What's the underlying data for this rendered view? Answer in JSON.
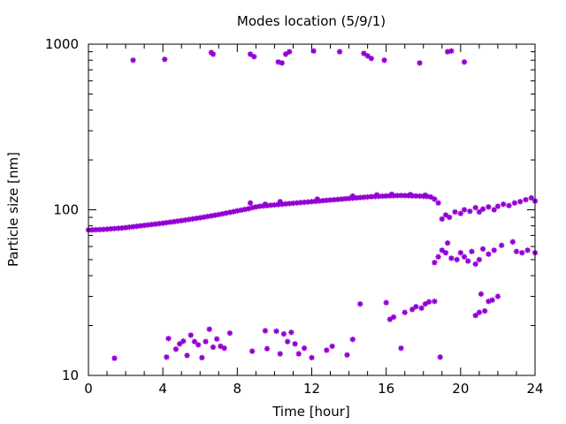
{
  "chart_data": {
    "type": "scatter",
    "title": "Modes location (5/9/1)",
    "xlabel": "Time [hour]",
    "ylabel": "Particle size [nm]",
    "xlim": [
      0,
      24
    ],
    "ylim": [
      10,
      1000
    ],
    "yscale": "log",
    "x_ticks": [
      0,
      4,
      8,
      12,
      16,
      20,
      24
    ],
    "x_tick_labels": [
      "0",
      "4",
      "8",
      "12",
      "16",
      "20",
      "24"
    ],
    "y_ticks": [
      10,
      100,
      1000
    ],
    "y_tick_labels": [
      "10",
      "100",
      "1000"
    ],
    "grid": false,
    "marker_color": "#9400D3",
    "series": [
      {
        "values": [
          [
            0.0,
            75.5
          ],
          [
            0.2,
            75.6
          ],
          [
            0.4,
            75.8
          ],
          [
            0.6,
            75.9
          ],
          [
            0.8,
            76.1
          ],
          [
            1.0,
            76.4
          ],
          [
            1.2,
            76.7
          ],
          [
            1.4,
            77.0
          ],
          [
            1.6,
            77.3
          ],
          [
            1.8,
            77.6
          ],
          [
            2.0,
            78.0
          ],
          [
            2.2,
            78.5
          ],
          [
            2.4,
            79.0
          ],
          [
            2.6,
            79.5
          ],
          [
            2.8,
            80.0
          ],
          [
            3.0,
            80.5
          ],
          [
            3.2,
            81.0
          ],
          [
            3.4,
            81.5
          ],
          [
            3.6,
            82.0
          ],
          [
            3.8,
            82.5
          ],
          [
            4.0,
            83.0
          ],
          [
            4.2,
            83.6
          ],
          [
            4.4,
            84.2
          ],
          [
            4.6,
            84.8
          ],
          [
            4.8,
            85.4
          ],
          [
            5.0,
            86.0
          ],
          [
            5.2,
            86.7
          ],
          [
            5.4,
            87.4
          ],
          [
            5.6,
            88.1
          ],
          [
            5.8,
            88.8
          ],
          [
            6.0,
            89.5
          ],
          [
            6.2,
            90.3
          ],
          [
            6.4,
            91.1
          ],
          [
            6.6,
            91.9
          ],
          [
            6.8,
            92.7
          ],
          [
            7.0,
            93.5
          ],
          [
            7.2,
            94.5
          ],
          [
            7.4,
            95.5
          ],
          [
            7.6,
            96.5
          ],
          [
            7.8,
            97.5
          ],
          [
            8.0,
            98.5
          ],
          [
            8.2,
            99.5
          ],
          [
            8.4,
            100.5
          ],
          [
            8.6,
            101.5
          ],
          [
            8.8,
            103.0
          ],
          [
            9.0,
            104.0
          ],
          [
            9.2,
            105.0
          ],
          [
            9.4,
            105.5
          ],
          [
            9.6,
            106.0
          ],
          [
            9.8,
            106.5
          ],
          [
            10.0,
            107.0
          ],
          [
            10.2,
            107.5
          ],
          [
            10.4,
            108.0
          ],
          [
            10.6,
            108.5
          ],
          [
            10.8,
            109.0
          ],
          [
            11.0,
            109.5
          ],
          [
            11.2,
            110.0
          ],
          [
            11.4,
            110.5
          ],
          [
            11.6,
            111.0
          ],
          [
            11.8,
            111.5
          ],
          [
            12.0,
            112.0
          ],
          [
            12.2,
            112.5
          ],
          [
            12.4,
            113.0
          ],
          [
            12.6,
            113.5
          ],
          [
            12.8,
            114.0
          ],
          [
            13.0,
            114.5
          ],
          [
            13.2,
            115.0
          ],
          [
            13.4,
            115.5
          ],
          [
            13.6,
            116.0
          ],
          [
            13.8,
            116.5
          ],
          [
            14.0,
            117.0
          ],
          [
            14.2,
            117.5
          ],
          [
            14.4,
            118.0
          ],
          [
            14.6,
            118.5
          ],
          [
            14.8,
            119.0
          ],
          [
            15.0,
            119.5
          ],
          [
            15.2,
            120.0
          ],
          [
            15.4,
            120.3
          ],
          [
            15.6,
            120.6
          ],
          [
            15.8,
            120.9
          ],
          [
            16.0,
            121.2
          ],
          [
            16.2,
            121.4
          ],
          [
            16.4,
            121.6
          ],
          [
            16.6,
            121.8
          ],
          [
            16.8,
            122.0
          ],
          [
            17.0,
            121.8
          ],
          [
            17.2,
            121.6
          ],
          [
            17.4,
            121.4
          ],
          [
            17.6,
            121.2
          ],
          [
            17.8,
            121.0
          ],
          [
            18.0,
            120.7
          ],
          [
            18.2,
            120.4
          ],
          [
            18.4,
            119.5
          ],
          [
            18.6,
            116.0
          ],
          [
            18.8,
            110.0
          ],
          [
            8.7,
            110.0
          ],
          [
            9.5,
            108.0
          ],
          [
            10.3,
            112.0
          ],
          [
            12.3,
            116.0
          ],
          [
            14.2,
            121.0
          ],
          [
            15.5,
            123.0
          ],
          [
            16.3,
            124.0
          ],
          [
            17.3,
            123.5
          ],
          [
            18.1,
            122.5
          ],
          [
            19.0,
            88.0
          ],
          [
            19.2,
            93.0
          ],
          [
            19.4,
            90.0
          ],
          [
            19.7,
            97.0
          ],
          [
            20.0,
            95.0
          ],
          [
            20.2,
            100.0
          ],
          [
            20.5,
            98.0
          ],
          [
            20.8,
            103.0
          ],
          [
            21.0,
            97.0
          ],
          [
            21.2,
            101.0
          ],
          [
            21.5,
            104.0
          ],
          [
            21.8,
            100.0
          ],
          [
            22.0,
            105.0
          ],
          [
            22.3,
            108.0
          ],
          [
            22.6,
            106.0
          ],
          [
            22.9,
            110.0
          ],
          [
            23.2,
            112.0
          ],
          [
            23.5,
            115.0
          ],
          [
            23.8,
            118.0
          ],
          [
            24.0,
            113.0
          ],
          [
            18.6,
            48.0
          ],
          [
            18.8,
            52.0
          ],
          [
            19.0,
            57.0
          ],
          [
            19.2,
            55.0
          ],
          [
            19.3,
            63.0
          ],
          [
            19.5,
            51.0
          ],
          [
            19.8,
            50.0
          ],
          [
            20.0,
            55.0
          ],
          [
            20.2,
            52.0
          ],
          [
            20.4,
            49.0
          ],
          [
            20.6,
            56.0
          ],
          [
            20.8,
            47.0
          ],
          [
            21.0,
            50.0
          ],
          [
            21.2,
            58.0
          ],
          [
            21.5,
            54.0
          ],
          [
            21.8,
            57.0
          ],
          [
            22.2,
            61.0
          ],
          [
            22.8,
            64.0
          ],
          [
            23.0,
            56.0
          ],
          [
            23.3,
            55.0
          ],
          [
            23.6,
            57.0
          ],
          [
            24.0,
            55.0
          ],
          [
            1.4,
            12.7
          ],
          [
            4.2,
            12.9
          ],
          [
            4.3,
            16.7
          ],
          [
            4.7,
            14.4
          ],
          [
            4.9,
            15.5
          ],
          [
            5.1,
            16.1
          ],
          [
            5.3,
            13.2
          ],
          [
            5.5,
            17.5
          ],
          [
            5.7,
            16.0
          ],
          [
            5.9,
            15.3
          ],
          [
            6.1,
            12.8
          ],
          [
            6.3,
            16.0
          ],
          [
            6.5,
            19.0
          ],
          [
            6.7,
            14.8
          ],
          [
            6.9,
            16.6
          ],
          [
            7.1,
            15.0
          ],
          [
            7.3,
            14.6
          ],
          [
            7.6,
            18.0
          ],
          [
            8.8,
            14.0
          ],
          [
            9.5,
            18.6
          ],
          [
            9.6,
            14.5
          ],
          [
            10.1,
            18.5
          ],
          [
            10.3,
            13.5
          ],
          [
            10.5,
            17.8
          ],
          [
            10.7,
            16.0
          ],
          [
            10.9,
            18.2
          ],
          [
            11.1,
            15.5
          ],
          [
            11.3,
            13.5
          ],
          [
            11.6,
            14.6
          ],
          [
            12.0,
            12.8
          ],
          [
            12.8,
            14.2
          ],
          [
            13.1,
            15.0
          ],
          [
            13.9,
            13.3
          ],
          [
            14.2,
            16.5
          ],
          [
            14.6,
            27.0
          ],
          [
            16.0,
            27.5
          ],
          [
            16.2,
            21.8
          ],
          [
            16.4,
            22.5
          ],
          [
            16.8,
            14.6
          ],
          [
            17.0,
            24.0
          ],
          [
            17.4,
            25.0
          ],
          [
            17.6,
            26.0
          ],
          [
            17.9,
            25.5
          ],
          [
            18.1,
            27.0
          ],
          [
            18.3,
            27.8
          ],
          [
            18.6,
            28.0
          ],
          [
            18.9,
            12.9
          ],
          [
            20.8,
            23.0
          ],
          [
            21.0,
            24.0
          ],
          [
            21.1,
            31.0
          ],
          [
            21.3,
            24.5
          ],
          [
            21.5,
            28.0
          ],
          [
            21.7,
            28.5
          ],
          [
            22.0,
            30.0
          ],
          [
            2.4,
            800.0
          ],
          [
            4.1,
            810.0
          ],
          [
            6.6,
            890.0
          ],
          [
            6.7,
            870.0
          ],
          [
            8.7,
            870.0
          ],
          [
            8.9,
            840.0
          ],
          [
            10.2,
            780.0
          ],
          [
            10.4,
            770.0
          ],
          [
            10.6,
            870.0
          ],
          [
            10.8,
            900.0
          ],
          [
            12.1,
            910.0
          ],
          [
            13.5,
            900.0
          ],
          [
            14.8,
            880.0
          ],
          [
            15.0,
            850.0
          ],
          [
            15.2,
            820.0
          ],
          [
            15.9,
            800.0
          ],
          [
            17.8,
            770.0
          ],
          [
            19.3,
            900.0
          ],
          [
            19.5,
            910.0
          ],
          [
            20.2,
            780.0
          ]
        ]
      }
    ]
  }
}
